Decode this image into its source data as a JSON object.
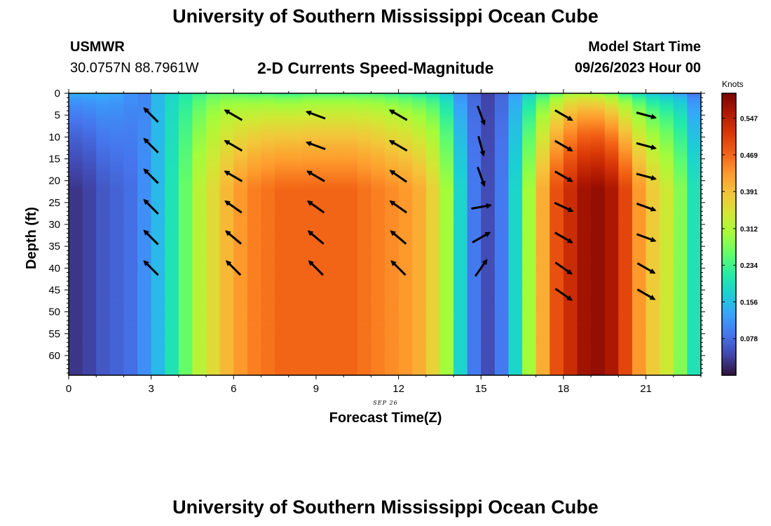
{
  "header": {
    "title": "University of Southern Mississippi Ocean Cube",
    "station": "USMWR",
    "coords": "30.0757N  88.7961W",
    "subtitle": "2-D Currents Speed-Magnitude",
    "run_label": "Model Start Time",
    "run_time": "09/26/2023 Hour 00"
  },
  "footer": {
    "title": "University of Southern Mississippi Ocean Cube"
  },
  "colors": {
    "colormap": [
      "#30123b",
      "#4145ab",
      "#4675ed",
      "#39a2fc",
      "#1bcfd4",
      "#24eca6",
      "#61fc6c",
      "#a4fc3b",
      "#d1e834",
      "#f3c63a",
      "#fe9b2d",
      "#f36315",
      "#d93807",
      "#b11901",
      "#7a0403"
    ],
    "mark_color": "#000000"
  },
  "chart_data": {
    "type": "heatmap",
    "xlabel": "Forecast Time(Z)",
    "ylabel": "Depth (ft)",
    "date_label": "SEP 26",
    "colorbar_label": "Knots",
    "xlim": [
      0,
      23
    ],
    "ylim": [
      0,
      64.5
    ],
    "y_inverted": true,
    "x_ticks": [
      0,
      3,
      6,
      9,
      12,
      15,
      18,
      21
    ],
    "y_ticks": [
      0,
      5,
      10,
      15,
      20,
      25,
      30,
      35,
      40,
      45,
      50,
      55,
      60
    ],
    "color_range": [
      0.0,
      0.6
    ],
    "colorbar_ticks": [
      "0.078",
      "0.156",
      "0.234",
      "0.312",
      "0.391",
      "0.469",
      "0.547"
    ],
    "colorbar_tick_values": [
      0.078,
      0.156,
      0.234,
      0.312,
      0.391,
      0.469,
      0.547
    ],
    "time_hours": [
      0,
      0.5,
      1,
      1.5,
      2,
      2.5,
      3,
      3.5,
      4,
      4.5,
      5,
      5.5,
      6,
      6.5,
      7,
      7.5,
      8,
      8.5,
      9,
      9.5,
      10,
      10.5,
      11,
      11.5,
      12,
      12.5,
      13,
      13.5,
      14,
      14.5,
      15,
      15.5,
      16,
      16.5,
      17,
      17.5,
      18,
      18.5,
      19,
      19.5,
      20,
      20.5,
      21,
      21.5,
      22,
      22.5
    ],
    "surface_speed": [
      0.15,
      0.15,
      0.15,
      0.14,
      0.12,
      0.1,
      0.15,
      0.18,
      0.2,
      0.22,
      0.24,
      0.24,
      0.23,
      0.22,
      0.22,
      0.21,
      0.21,
      0.22,
      0.22,
      0.22,
      0.22,
      0.22,
      0.22,
      0.21,
      0.2,
      0.19,
      0.18,
      0.15,
      0.1,
      0.07,
      0.04,
      0.07,
      0.12,
      0.16,
      0.2,
      0.24,
      0.28,
      0.28,
      0.27,
      0.24,
      0.2,
      0.17,
      0.14,
      0.13,
      0.12,
      0.08
    ],
    "deep_speed": [
      0.03,
      0.04,
      0.06,
      0.07,
      0.08,
      0.11,
      0.15,
      0.2,
      0.26,
      0.32,
      0.36,
      0.4,
      0.43,
      0.45,
      0.46,
      0.47,
      0.47,
      0.47,
      0.47,
      0.47,
      0.47,
      0.46,
      0.45,
      0.44,
      0.43,
      0.41,
      0.37,
      0.3,
      0.18,
      0.09,
      0.05,
      0.09,
      0.18,
      0.3,
      0.41,
      0.49,
      0.53,
      0.57,
      0.58,
      0.56,
      0.5,
      0.43,
      0.38,
      0.34,
      0.28,
      0.2
    ],
    "arrow_times": [
      3,
      6,
      9,
      12,
      15,
      18,
      21
    ],
    "arrow_depths": [
      5,
      12,
      19,
      26,
      33,
      40,
      46
    ],
    "arrow_directions_deg": [
      [
        315,
        300,
        290,
        300,
        160,
        120,
        105
      ],
      [
        315,
        300,
        290,
        300,
        165,
        120,
        105
      ],
      [
        315,
        300,
        300,
        305,
        160,
        120,
        105
      ],
      [
        315,
        305,
        305,
        305,
        80,
        115,
        110
      ],
      [
        315,
        310,
        310,
        310,
        60,
        120,
        110
      ],
      [
        315,
        315,
        315,
        315,
        35,
        125,
        120
      ],
      [
        null,
        null,
        null,
        null,
        null,
        125,
        120
      ]
    ],
    "arrow_speed_knots": [
      [
        0.2,
        0.24,
        0.23,
        0.22,
        0.1,
        0.3,
        0.14
      ],
      [
        0.2,
        0.26,
        0.26,
        0.26,
        0.1,
        0.35,
        0.14
      ],
      [
        0.2,
        0.27,
        0.27,
        0.27,
        0.1,
        0.38,
        0.15
      ],
      [
        0.2,
        0.27,
        0.27,
        0.27,
        0.1,
        0.4,
        0.15
      ],
      [
        0.2,
        0.26,
        0.26,
        0.26,
        0.1,
        0.4,
        0.15
      ],
      [
        0.2,
        0.26,
        0.26,
        0.26,
        0.1,
        0.4,
        0.15
      ],
      [
        null,
        null,
        null,
        null,
        null,
        0.38,
        0.14
      ]
    ]
  }
}
